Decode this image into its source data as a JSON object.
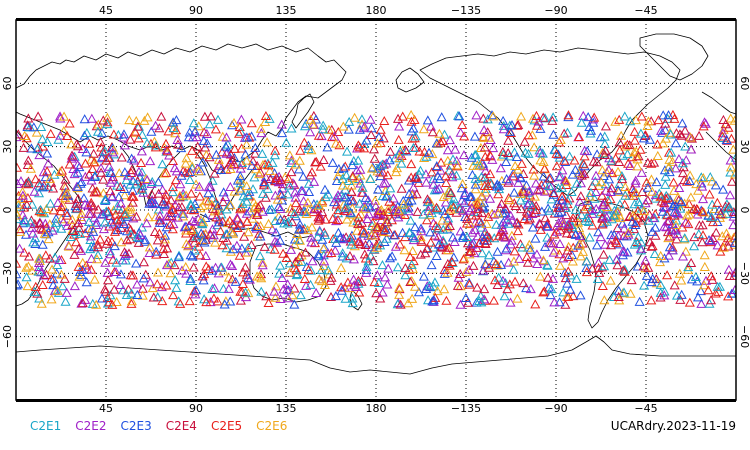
{
  "map": {
    "projection": "cylindrical-equidistant",
    "lon_range": [
      0,
      360
    ],
    "lat_range": [
      -90,
      90
    ],
    "lon_ticks": [
      {
        "lon": 45,
        "label": "45"
      },
      {
        "lon": 90,
        "label": "90"
      },
      {
        "lon": 135,
        "label": "135"
      },
      {
        "lon": 180,
        "label": "180"
      },
      {
        "lon": 225,
        "label": "−135"
      },
      {
        "lon": 270,
        "label": "−90"
      },
      {
        "lon": 315,
        "label": "−45"
      }
    ],
    "lat_ticks": [
      {
        "lat": 60,
        "label": "60"
      },
      {
        "lat": 30,
        "label": "30"
      },
      {
        "lat": 0,
        "label": "0"
      },
      {
        "lat": -30,
        "label": "−30"
      },
      {
        "lat": -60,
        "label": "−60"
      }
    ],
    "grid": true,
    "marker": "triangle-outline",
    "observation_lat_band": [
      -45,
      45
    ]
  },
  "legend": {
    "items": [
      {
        "label": "C2E1",
        "color": "#1aa6c8"
      },
      {
        "label": "C2E2",
        "color": "#a020c8"
      },
      {
        "label": "C2E3",
        "color": "#2050e0"
      },
      {
        "label": "C2E4",
        "color": "#c8103c"
      },
      {
        "label": "C2E5",
        "color": "#e8201c"
      },
      {
        "label": "C2E6",
        "color": "#f0a81c"
      }
    ]
  },
  "caption": "UCARdry.2023-11-19"
}
